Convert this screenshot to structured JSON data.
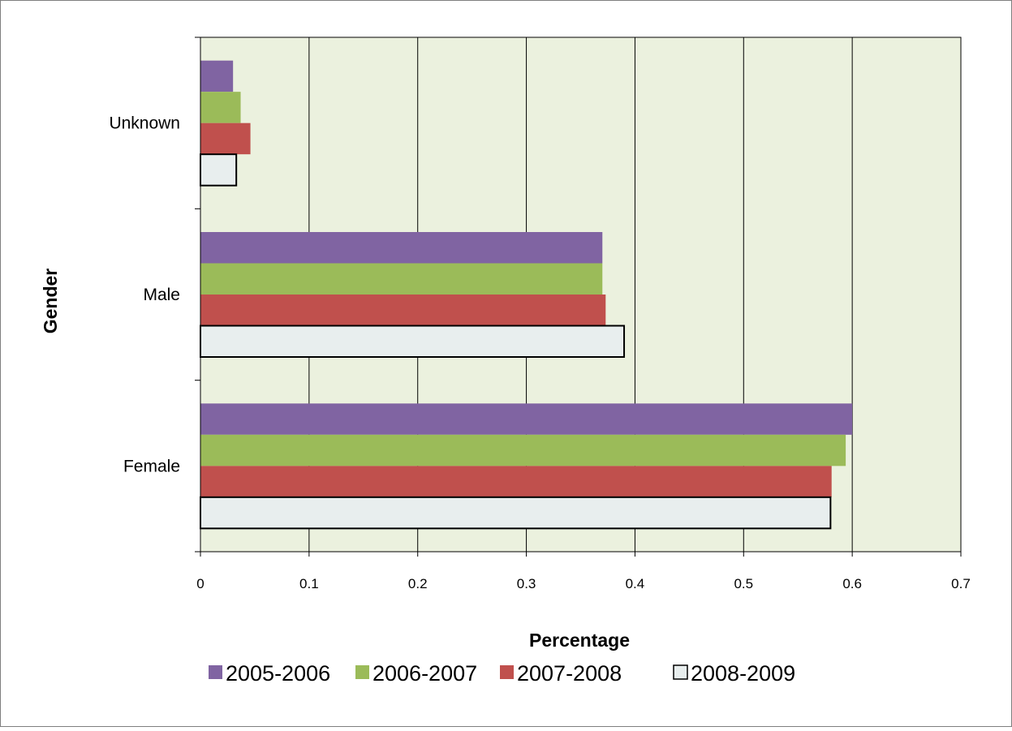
{
  "chart_data": {
    "type": "bar",
    "orientation": "horizontal",
    "title": "",
    "xlabel": "Percentage",
    "ylabel": "Gender",
    "xlim": [
      0,
      0.7
    ],
    "x_ticks": [
      "0",
      "0.1",
      "0.2",
      "0.3",
      "0.4",
      "0.5",
      "0.6",
      "0.7"
    ],
    "x_tick_values": [
      0,
      0.1,
      0.2,
      0.3,
      0.4,
      0.5,
      0.6,
      0.7
    ],
    "categories": [
      "Unknown",
      "Male",
      "Female"
    ],
    "grid": "vertical",
    "legend_position": "bottom",
    "plot_background": "#EBF1DE",
    "series": [
      {
        "name": "2005-2006",
        "color": "#8064A2",
        "outline": "none",
        "values": [
          0.03,
          0.37,
          0.6
        ]
      },
      {
        "name": "2006-2007",
        "color": "#9BBB59",
        "outline": "none",
        "values": [
          0.037,
          0.37,
          0.594
        ]
      },
      {
        "name": "2007-2008",
        "color": "#C0504D",
        "outline": "none",
        "values": [
          0.046,
          0.373,
          0.581
        ]
      },
      {
        "name": "2008-2009",
        "color": "#E8EEEE",
        "outline": "#000000",
        "values": [
          0.033,
          0.39,
          0.58
        ]
      }
    ]
  }
}
